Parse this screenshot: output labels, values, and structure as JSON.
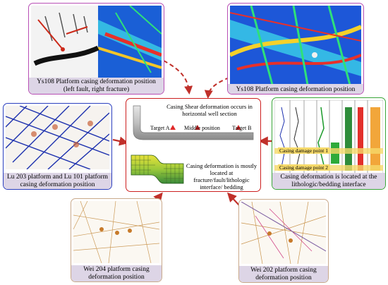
{
  "panels": {
    "ys108_left": {
      "caption": "Ys108 Platform casing deformation position (left fault, right fracture)"
    },
    "ys108_right": {
      "caption": "Ys108 Platform casing deformation position"
    },
    "lu203": {
      "caption": "Lu 203 platform and  Lu 101 platform casing deformation position"
    },
    "log": {
      "caption": "Casing deformation is located at the lithologic/bedding interface",
      "damage1": "Casing damage point 1",
      "damage2": "Casing damage point 2"
    },
    "wei204": {
      "caption": "Wei 204 platform casing deformation position"
    },
    "wei202": {
      "caption": "Wei 202 platform casing deformation position"
    }
  },
  "center": {
    "title": "Casing Shear deformation occurs in horizontal well section",
    "target_a": "Target A",
    "middle": "Middle position",
    "target_b": "Target B",
    "note": "Casing deformation is mostly located at fracture/fault/lithologic interface/ bedding"
  },
  "colors": {
    "center_border": "#cc1f1f",
    "ys_border": "#b84fb5",
    "lu_border": "#2b3fbf",
    "log_border": "#3aa63a",
    "wei_border": "#c9a98a",
    "arrow": "#c0302a"
  }
}
